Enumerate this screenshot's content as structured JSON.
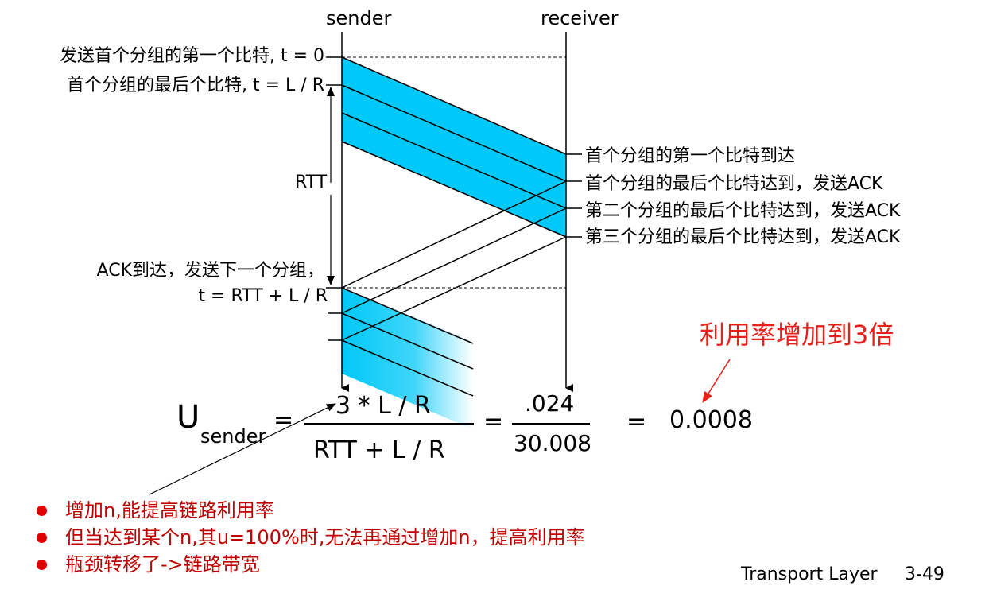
{
  "columns": {
    "sender": "sender",
    "receiver": "receiver"
  },
  "sender_labels": {
    "first_bit": "发送首个分组的第一个比特, t = 0",
    "last_bit": "首个分组的最后个比特, t = L / R",
    "rtt": "RTT",
    "ack_arrive_line1": "ACK到达，发送下一个分组，",
    "ack_arrive_line2": "t = RTT + L / R"
  },
  "receiver_labels": {
    "first_bit_arrive": "首个分组的第一个比特到达",
    "first_pkt_last_bit": "首个分组的最后个比特达到，发送ACK",
    "second_pkt_last_bit": "第二个分组的最后个比特达到，发送ACK",
    "third_pkt_last_bit": "第三个分组的最后个比特达到，发送ACK"
  },
  "annotation": "利用率增加到3倍",
  "formula": {
    "u": "U",
    "subscript": "sender",
    "eq1": "=",
    "numerator": "3 * L / R",
    "denominator": "RTT + L / R",
    "eq2": "=",
    "num2": ".024",
    "den2": "30.008",
    "eq3": "=",
    "result": "0.0008"
  },
  "bullets": [
    "增加n,能提高链路利用率",
    "但当达到某个n,其u=100%时,无法再通过增加n，提高利用率",
    "瓶颈转移了->链路带宽"
  ],
  "footer": {
    "title": "Transport Layer",
    "page": "3-49"
  },
  "colors": {
    "band": "#00c8f8",
    "accent_red": "#e8201a",
    "bullet_red": "#c00000"
  }
}
